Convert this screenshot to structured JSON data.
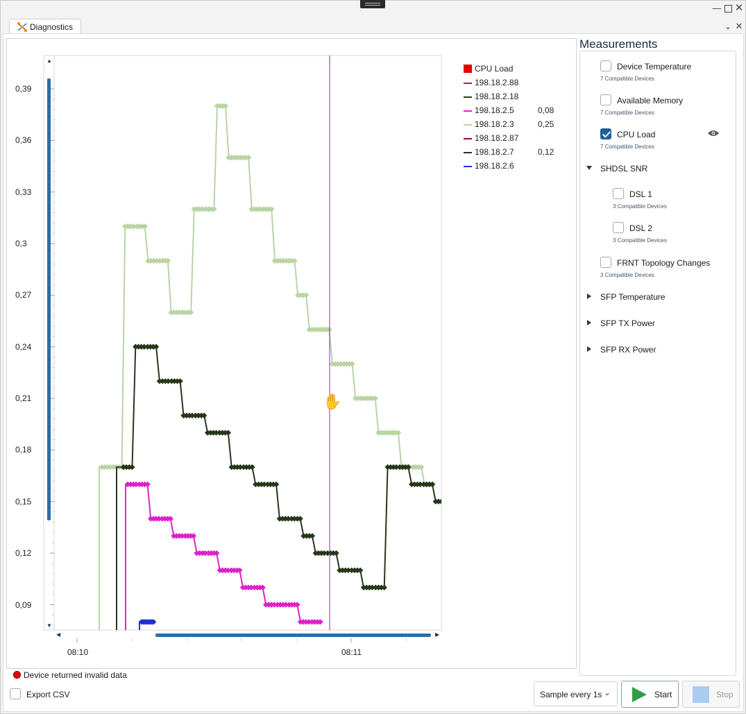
{
  "window": {
    "tab_title": "Diagnostics"
  },
  "chart_data": {
    "type": "line",
    "title": "",
    "xlabel": "",
    "ylabel": "",
    "ylim": [
      0.075,
      0.41
    ],
    "y_ticks": [
      "0,09",
      "0,12",
      "0,15",
      "0,18",
      "0,21",
      "0,24",
      "0,27",
      "0,3",
      "0,33",
      "0,36",
      "0,39"
    ],
    "x_ticks": [
      "08:10",
      "08:11"
    ],
    "cursor_time": "08:11",
    "series": [
      {
        "name": "198.18.2.88",
        "color": "#c0143c",
        "values": []
      },
      {
        "name": "198.18.2.18",
        "color": "#2b3a13",
        "values": []
      },
      {
        "name": "198.18.2.5",
        "color": "#e020c8",
        "cursor_value": "0,08",
        "points": [
          [
            0,
            0.16
          ],
          [
            1,
            0.16
          ],
          [
            2,
            0.14
          ],
          [
            3,
            0.14
          ],
          [
            4,
            0.13
          ],
          [
            5,
            0.13
          ],
          [
            6,
            0.12
          ],
          [
            7,
            0.12
          ],
          [
            8,
            0.11
          ],
          [
            9,
            0.11
          ],
          [
            10,
            0.1
          ],
          [
            11,
            0.1
          ],
          [
            12,
            0.09
          ],
          [
            13,
            0.09
          ],
          [
            14,
            0.09
          ],
          [
            15,
            0.08
          ],
          [
            16,
            0.08
          ]
        ]
      },
      {
        "name": "198.18.2.3",
        "color": "#b9d4a4",
        "cursor_value": "0,25",
        "points": [
          [
            0,
            0.17
          ],
          [
            1,
            0.17
          ],
          [
            2,
            0.31
          ],
          [
            3,
            0.31
          ],
          [
            4,
            0.29
          ],
          [
            5,
            0.29
          ],
          [
            6,
            0.26
          ],
          [
            7,
            0.26
          ],
          [
            8,
            0.32
          ],
          [
            9,
            0.32
          ],
          [
            10,
            0.38
          ],
          [
            11,
            0.35
          ],
          [
            12,
            0.35
          ],
          [
            13,
            0.32
          ],
          [
            14,
            0.32
          ],
          [
            15,
            0.29
          ],
          [
            16,
            0.29
          ],
          [
            17,
            0.27
          ],
          [
            18,
            0.25
          ],
          [
            19,
            0.25
          ],
          [
            20,
            0.23
          ],
          [
            21,
            0.23
          ],
          [
            22,
            0.21
          ],
          [
            23,
            0.21
          ],
          [
            24,
            0.19
          ],
          [
            25,
            0.19
          ],
          [
            26,
            0.17
          ],
          [
            27,
            0.17
          ],
          [
            28,
            0.16
          ]
        ]
      },
      {
        "name": "198.18.2.87",
        "color": "#8a0a2a",
        "values": []
      },
      {
        "name": "198.18.2.7",
        "color": "#26361a",
        "cursor_value": "0,12",
        "points": [
          [
            0,
            0.17
          ],
          [
            1,
            0.24
          ],
          [
            2,
            0.24
          ],
          [
            3,
            0.22
          ],
          [
            4,
            0.22
          ],
          [
            5,
            0.2
          ],
          [
            6,
            0.2
          ],
          [
            7,
            0.19
          ],
          [
            8,
            0.19
          ],
          [
            9,
            0.17
          ],
          [
            10,
            0.17
          ],
          [
            11,
            0.16
          ],
          [
            12,
            0.16
          ],
          [
            13,
            0.14
          ],
          [
            14,
            0.14
          ],
          [
            15,
            0.13
          ],
          [
            16,
            0.12
          ],
          [
            17,
            0.12
          ],
          [
            18,
            0.11
          ],
          [
            19,
            0.11
          ],
          [
            20,
            0.1
          ],
          [
            21,
            0.1
          ],
          [
            22,
            0.17
          ],
          [
            23,
            0.17
          ],
          [
            24,
            0.16
          ],
          [
            25,
            0.16
          ],
          [
            26,
            0.15
          ]
        ]
      },
      {
        "name": "198.18.2.6",
        "color": "#1d2fd0",
        "points": [
          [
            0,
            0.08
          ],
          [
            1,
            0.08
          ]
        ]
      }
    ],
    "cpu_legend": {
      "name": "CPU Load",
      "color": "#e60000"
    }
  },
  "measurements": {
    "title": "Measurements",
    "items": [
      {
        "label": "Device Temperature",
        "sub": "7 Compatible Devices",
        "checked": false
      },
      {
        "label": "Available Memory",
        "sub": "7 Compatible Devices",
        "checked": false
      },
      {
        "label": "CPU Load",
        "sub": "7 Compatible Devices",
        "checked": true,
        "icon": "eye-icon"
      }
    ],
    "group_shdsl": {
      "label": "SHDSL SNR",
      "expanded": true,
      "children": [
        {
          "label": "DSL 1",
          "sub": "3 Compatible Devices"
        },
        {
          "label": "DSL 2",
          "sub": "3 Compatible Devices"
        }
      ]
    },
    "frnt": {
      "label": "FRNT Topology Changes",
      "sub": "3 Compatible Devices"
    },
    "collapsed_groups": [
      "SFP Temperature",
      "SFP TX Power",
      "SFP RX Power"
    ]
  },
  "status": {
    "message": "Device returned invalid data"
  },
  "footer": {
    "export_label": "Export CSV",
    "sample_label": "Sample every 1s",
    "start_label": "Start",
    "stop_label": "Stop"
  }
}
